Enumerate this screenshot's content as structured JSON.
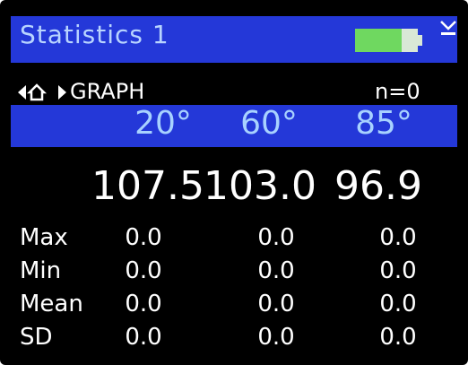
{
  "header": {
    "title": "Statistics 1"
  },
  "nav": {
    "view": "GRAPH",
    "count": "n=0"
  },
  "angles": [
    "20°",
    "60°",
    "85°"
  ],
  "readings": [
    "107.5",
    "103.0",
    "96.9"
  ],
  "stats": [
    {
      "label": "Max",
      "values": [
        "0.0",
        "0.0",
        "0.0"
      ]
    },
    {
      "label": "Min",
      "values": [
        "0.0",
        "0.0",
        "0.0"
      ]
    },
    {
      "label": "Mean",
      "values": [
        "0.0",
        "0.0",
        "0.0"
      ]
    },
    {
      "label": "SD",
      "values": [
        "0.0",
        "0.0",
        "0.0"
      ]
    }
  ]
}
